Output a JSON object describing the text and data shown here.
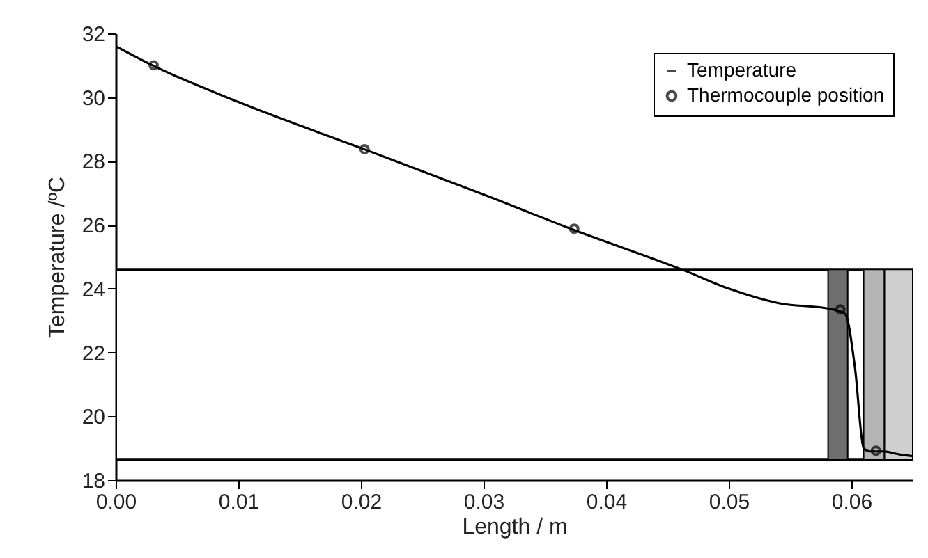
{
  "chart_data": {
    "type": "line",
    "xlabel": "Length / m",
    "ylabel": "Temperature /ºC",
    "xlim": [
      0,
      0.065
    ],
    "ylim": [
      18,
      32
    ],
    "xticks": [
      {
        "value": 0,
        "label": "0.00"
      },
      {
        "value": 0.01,
        "label": "0.01"
      },
      {
        "value": 0.02,
        "label": "0.02"
      },
      {
        "value": 0.03,
        "label": "0.03"
      },
      {
        "value": 0.04,
        "label": "0.04"
      },
      {
        "value": 0.05,
        "label": "0.05"
      },
      {
        "value": 0.06,
        "label": "0.06"
      }
    ],
    "yticks": [
      18,
      20,
      22,
      24,
      26,
      28,
      30,
      32
    ],
    "series": [
      {
        "name": "Temperature",
        "color": "#000000",
        "marker": "none",
        "line_style": "solid",
        "x": [
          0,
          0.003,
          0.01,
          0.0204,
          0.03,
          0.0373,
          0.0465,
          0.05,
          0.054,
          0.0585,
          0.0595,
          0.0603,
          0.061,
          0.0615,
          0.0625,
          0.064,
          0.065
        ],
        "values": [
          31.6,
          31.0,
          29.85,
          28.35,
          26.95,
          25.85,
          24.55,
          24.0,
          23.55,
          23.35,
          23.2,
          21.5,
          19.0,
          18.9,
          18.9,
          18.8,
          18.75
        ]
      },
      {
        "name": "Thermocouple position",
        "type": "scatter",
        "color": "#000000",
        "marker": "circle",
        "x": [
          0.0031,
          0.0203,
          0.0374,
          0.0591,
          0.062
        ],
        "values": [
          31.0,
          28.37,
          25.88,
          23.35,
          18.92
        ]
      }
    ],
    "bands": [
      {
        "axis": "y",
        "from": 18.65,
        "to": 24.6,
        "color": "#ffffff"
      },
      {
        "axis": "x",
        "from": 0.0581,
        "to": 0.0597,
        "color": "#6e6e6e"
      },
      {
        "axis": "x",
        "from": 0.061,
        "to": 0.0627,
        "color": "#b4b4b4"
      },
      {
        "axis": "x",
        "from": 0.0627,
        "to": 0.065,
        "color": "#cfcfcf"
      }
    ],
    "grid": false,
    "legend": "top right"
  }
}
